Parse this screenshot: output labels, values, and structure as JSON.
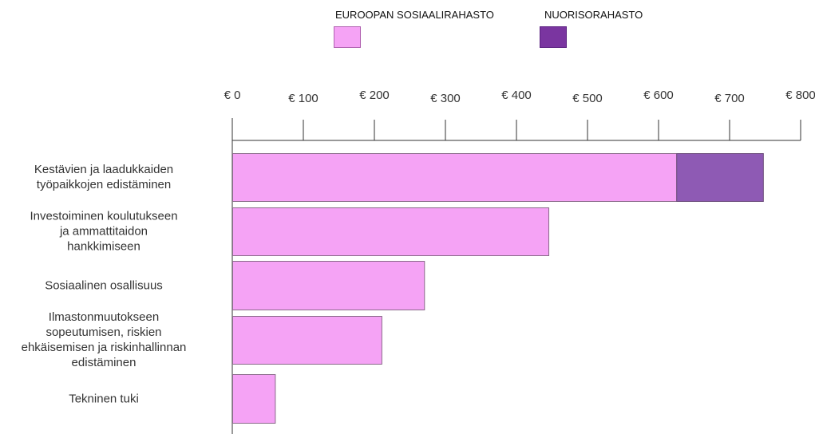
{
  "chart_data": {
    "type": "bar",
    "orientation": "horizontal",
    "stacked": true,
    "title": "",
    "xlabel": "",
    "ylabel": "",
    "xlim": [
      0,
      800
    ],
    "tick_labels": [
      "€ 0",
      "€ 100",
      "€ 200",
      "€ 300",
      "€ 400",
      "€ 500",
      "€ 600",
      "€ 700",
      "€ 800"
    ],
    "tick_values": [
      0,
      100,
      200,
      300,
      400,
      500,
      600,
      700,
      800
    ],
    "legend_position": "top",
    "categories": [
      [
        "Kestävien ja laadukkaiden",
        "työpaikkojen edistäminen"
      ],
      [
        "Investoiminen koulutukseen",
        "ja ammattitaidon",
        "hankkimiseen"
      ],
      [
        "Sosiaalinen osallisuus"
      ],
      [
        "Ilmastonmuutokseen",
        "sopeutumisen, riskien",
        "ehkäisemisen ja riskinhallinnan",
        "edistäminen"
      ],
      [
        "Tekninen tuki"
      ]
    ],
    "series": [
      {
        "name": "EUROOPAN SOSIAALIRAHASTO",
        "color": "#f5a3f5",
        "values": [
          625,
          445,
          270,
          210,
          60
        ]
      },
      {
        "name": "NUORISORAHASTO",
        "color": "#8e5ab4",
        "values": [
          122,
          0,
          0,
          0,
          0
        ]
      }
    ]
  },
  "legend": {
    "items": [
      {
        "label": "EUROOPAN SOSIAALIRAHASTO",
        "color": "#f5a3f5",
        "border": "#b060b0"
      },
      {
        "label": "NUORISORAHASTO",
        "color": "#7a35a0",
        "border": "#5a2080"
      }
    ]
  }
}
